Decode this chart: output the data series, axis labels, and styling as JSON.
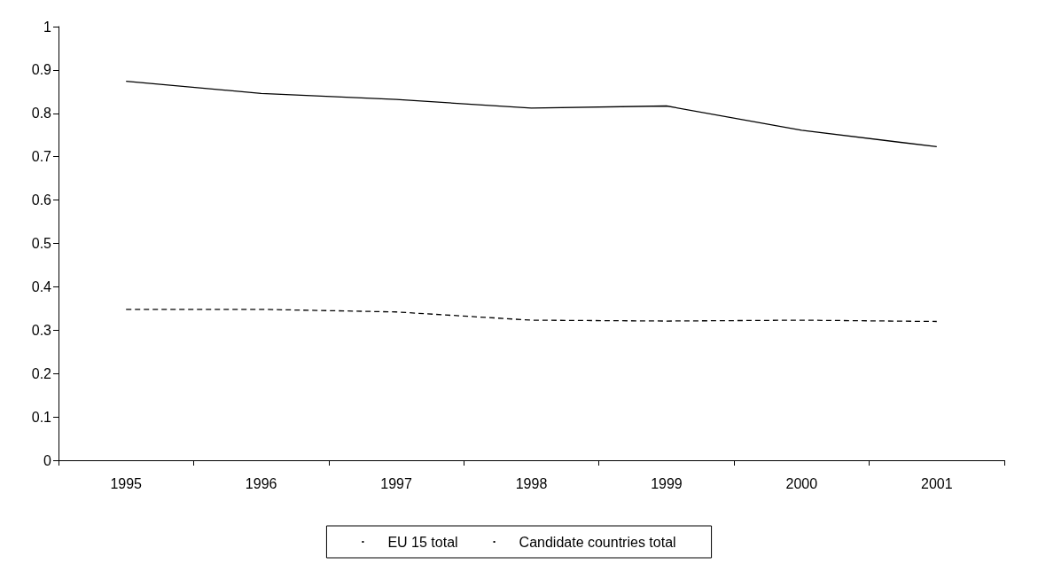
{
  "chart_data": {
    "type": "line",
    "categories": [
      "1995",
      "1996",
      "1997",
      "1998",
      "1999",
      "2000",
      "2001"
    ],
    "series": [
      {
        "name": "EU 15 total",
        "color": "#000000",
        "line_style": "dashed",
        "values": [
          0.348,
          0.348,
          0.342,
          0.323,
          0.321,
          0.323,
          0.32
        ]
      },
      {
        "name": "Candidate countries total",
        "color": "#000000",
        "line_style": "solid",
        "values": [
          0.874,
          0.846,
          0.832,
          0.812,
          0.817,
          0.761,
          0.723
        ]
      }
    ],
    "ylim": [
      0,
      1
    ],
    "yticks": [
      0,
      0.1,
      0.2,
      0.3,
      0.4,
      0.5,
      0.6,
      0.7,
      0.8,
      0.9,
      1
    ],
    "grid": false,
    "legend": "bottom",
    "marker": "none"
  }
}
